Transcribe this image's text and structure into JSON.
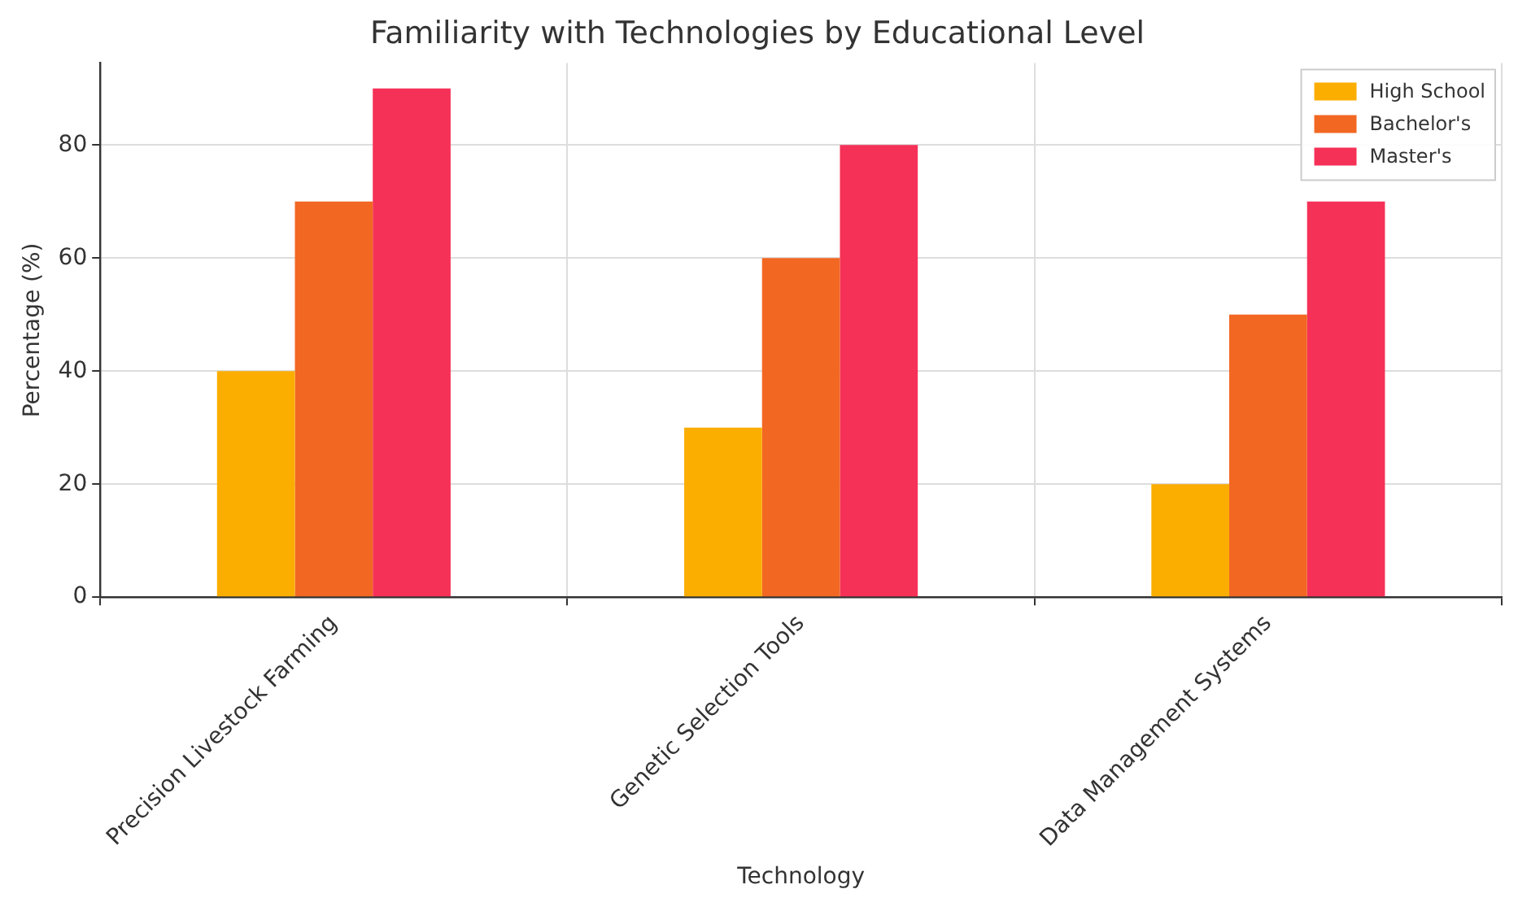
{
  "chart_data": {
    "type": "bar",
    "title": "Familiarity with Technologies by Educational Level",
    "xlabel": "Technology",
    "ylabel": "Percentage (%)",
    "categories": [
      "Precision Livestock Farming",
      "Genetic Selection Tools",
      "Data Management Systems"
    ],
    "series": [
      {
        "name": "High School",
        "color": "#fbad00",
        "values": [
          40,
          30,
          20
        ]
      },
      {
        "name": "Bachelor's",
        "color": "#f26722",
        "values": [
          70,
          60,
          50
        ]
      },
      {
        "name": "Master's",
        "color": "#f53157",
        "values": [
          90,
          80,
          70
        ]
      }
    ],
    "ylim": [
      0,
      94.5
    ],
    "yticks": [
      0,
      20,
      40,
      60,
      80
    ],
    "grid": true,
    "legend": "top right"
  }
}
